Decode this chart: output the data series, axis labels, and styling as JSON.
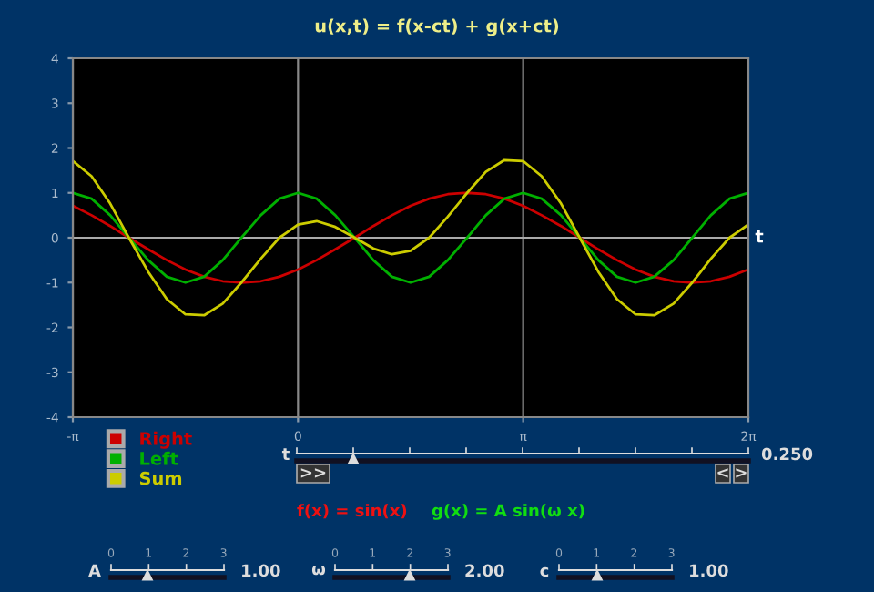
{
  "chart_data": {
    "type": "line",
    "title": "u(x,t) = f(x-ct) + g(x+ct)",
    "xlabel": "t",
    "x": [
      -3.14,
      -2.88,
      -2.62,
      -2.36,
      -2.09,
      -1.83,
      -1.57,
      -1.31,
      -1.05,
      -0.79,
      -0.52,
      -0.26,
      0,
      0.26,
      0.52,
      0.79,
      1.05,
      1.31,
      1.57,
      1.83,
      2.09,
      2.36,
      2.62,
      2.88,
      3.14,
      3.4,
      3.67,
      3.93,
      4.19,
      4.45,
      4.71,
      4.97,
      5.24,
      5.5,
      5.76,
      6.02,
      6.28
    ],
    "series": [
      {
        "name": "Right",
        "color": "#cc0000",
        "values": [
          0.71,
          0.5,
          0.26,
          0,
          -0.26,
          -0.5,
          -0.71,
          -0.87,
          -0.97,
          -1,
          -0.97,
          -0.87,
          -0.71,
          -0.5,
          -0.26,
          0,
          0.26,
          0.5,
          0.71,
          0.87,
          0.97,
          1,
          0.97,
          0.87,
          0.71,
          0.5,
          0.26,
          0,
          -0.26,
          -0.5,
          -0.71,
          -0.87,
          -0.97,
          -1,
          -0.97,
          -0.87,
          -0.71
        ]
      },
      {
        "name": "Left",
        "color": "#00b000",
        "values": [
          1,
          0.87,
          0.5,
          0,
          -0.5,
          -0.87,
          -1,
          -0.87,
          -0.5,
          0,
          0.5,
          0.87,
          1,
          0.87,
          0.5,
          0,
          -0.5,
          -0.87,
          -1,
          -0.87,
          -0.5,
          0,
          0.5,
          0.87,
          1,
          0.87,
          0.5,
          0,
          -0.5,
          -0.87,
          -1,
          -0.87,
          -0.5,
          0,
          0.5,
          0.87,
          1
        ]
      },
      {
        "name": "Sum",
        "color": "#cccc00",
        "values": [
          1.71,
          1.37,
          0.76,
          0,
          -0.76,
          -1.37,
          -1.71,
          -1.73,
          -1.47,
          -1,
          -0.47,
          0,
          0.29,
          0.37,
          0.24,
          0,
          -0.24,
          -0.37,
          -0.29,
          0,
          0.47,
          1,
          1.47,
          1.73,
          1.71,
          1.37,
          0.76,
          0,
          -0.76,
          -1.37,
          -1.71,
          -1.73,
          -1.47,
          -1,
          -0.47,
          0,
          0.29
        ]
      }
    ],
    "xlim": [
      -3.1416,
      6.2832
    ],
    "xticks": [
      {
        "value": -3.1416,
        "label": "-π"
      },
      0,
      {
        "value": 3.1416,
        "label": "π"
      },
      {
        "value": 6.2832,
        "label": "2π"
      }
    ],
    "ylim": [
      -4,
      4
    ],
    "yticks": [
      -4,
      -3,
      -2,
      -1,
      0,
      1,
      2,
      3,
      4
    ],
    "grid": "x",
    "ref_lines": [
      {
        "axis": "y",
        "value": 0,
        "color": "#aaaaaa"
      }
    ],
    "legend": "bottom left",
    "marker": "none",
    "line_style": "solid",
    "annotations": [
      "t",
      "0.250",
      ">>",
      "<",
      ">",
      "f(x) = sin(x)",
      "g(x) = A sin(ω x)",
      "A",
      "1.00",
      "ω",
      "2.00",
      "c",
      "1.00",
      "0",
      "1",
      "2",
      "3",
      "0",
      "1",
      "2",
      "3",
      "0",
      "1",
      "2",
      "3"
    ]
  }
}
